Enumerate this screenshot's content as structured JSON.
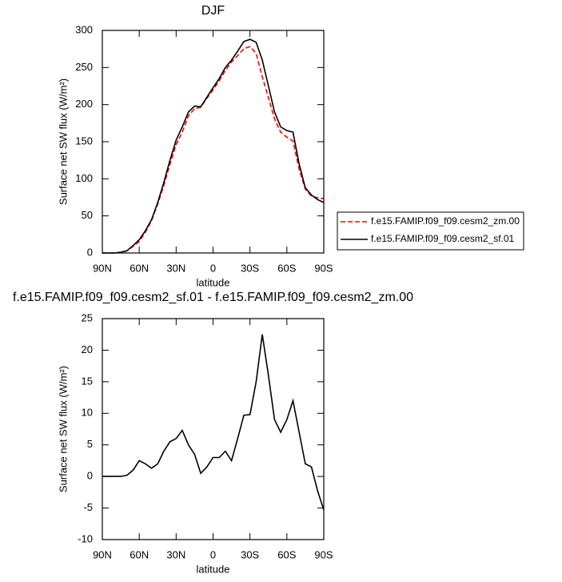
{
  "chart_data": [
    {
      "type": "line",
      "title": "DJF",
      "xlabel": "latitude",
      "ylabel": "Surface net SW flux (W/m²)",
      "x": [
        90,
        85,
        80,
        75,
        70,
        65,
        60,
        55,
        50,
        45,
        40,
        35,
        30,
        25,
        20,
        15,
        10,
        5,
        0,
        -5,
        -10,
        -15,
        -20,
        -25,
        -30,
        -35,
        -40,
        -45,
        -50,
        -55,
        -60,
        -65,
        -70,
        -75,
        -80,
        -85,
        -90
      ],
      "series": [
        {
          "name": "f.e15.FAMIP.f09_f09.cesm2_zm.00",
          "color": "#ff0000",
          "line_style": "dashed",
          "values": [
            0,
            0,
            0,
            1,
            2.8,
            9,
            15.5,
            28,
            43.7,
            66,
            91,
            119.5,
            146,
            162.7,
            185,
            194.5,
            196.5,
            208.5,
            220,
            232,
            246,
            257.5,
            266,
            275.3,
            278.2,
            269,
            237.5,
            209,
            181,
            163,
            156,
            151,
            113,
            86,
            76.5,
            74.3,
            73.3
          ]
        },
        {
          "name": "f.e15.FAMIP.f09_f09.cesm2_sf.01",
          "color": "#000000",
          "line_style": "solid",
          "values": [
            0,
            0,
            0,
            1,
            3,
            10,
            18,
            30,
            45,
            68,
            95,
            125,
            152,
            170,
            190,
            198,
            197,
            210,
            223,
            235,
            250,
            260,
            272,
            285,
            288,
            284,
            260,
            225,
            190,
            170,
            165,
            163,
            120,
            88,
            78,
            72,
            68
          ]
        }
      ],
      "xlim": [
        90,
        -90
      ],
      "xticks": [
        {
          "value": 90,
          "label": "90N"
        },
        {
          "value": 60,
          "label": "60N"
        },
        {
          "value": 30,
          "label": "30N"
        },
        0,
        {
          "value": -30,
          "label": "30S"
        },
        {
          "value": -60,
          "label": "60S"
        },
        {
          "value": -90,
          "label": "90S"
        }
      ],
      "ylim": [
        0,
        300
      ],
      "yticks": [
        0,
        50,
        100,
        150,
        200,
        250,
        300
      ],
      "legend": "right"
    },
    {
      "type": "line",
      "title": "f.e15.FAMIP.f09_f09.cesm2_sf.01 - f.e15.FAMIP.f09_f09.cesm2_zm.00",
      "xlabel": "latitude",
      "ylabel": "Surface net SW flux (W/m²)",
      "x": [
        90,
        85,
        80,
        75,
        70,
        65,
        60,
        55,
        50,
        45,
        40,
        35,
        30,
        25,
        20,
        15,
        10,
        5,
        0,
        -5,
        -10,
        -15,
        -20,
        -25,
        -30,
        -35,
        -40,
        -45,
        -50,
        -55,
        -60,
        -65,
        -70,
        -75,
        -80,
        -85,
        -90
      ],
      "series": [
        {
          "color": "#000000",
          "line_style": "solid",
          "values": [
            0,
            0,
            0,
            0,
            0.2,
            1,
            2.5,
            2,
            1.3,
            2,
            4,
            5.5,
            6,
            7.3,
            5,
            3.5,
            0.5,
            1.5,
            3,
            3,
            4,
            2.5,
            6,
            9.7,
            9.8,
            15,
            22.5,
            16,
            9,
            7,
            9,
            12,
            7,
            2,
            1.5,
            -2.3,
            -5.3
          ]
        }
      ],
      "xlim": [
        90,
        -90
      ],
      "xticks": [
        {
          "value": 90,
          "label": "90N"
        },
        {
          "value": 60,
          "label": "60N"
        },
        {
          "value": 30,
          "label": "30N"
        },
        0,
        {
          "value": -30,
          "label": "30S"
        },
        {
          "value": -60,
          "label": "60S"
        },
        {
          "value": -90,
          "label": "90S"
        }
      ],
      "ylim": [
        -10,
        25
      ],
      "yticks": [
        -10,
        -5,
        0,
        5,
        10,
        15,
        20,
        25
      ]
    }
  ]
}
